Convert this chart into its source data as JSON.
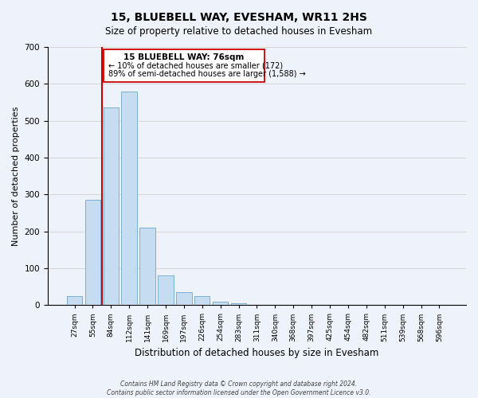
{
  "title": "15, BLUEBELL WAY, EVESHAM, WR11 2HS",
  "subtitle": "Size of property relative to detached houses in Evesham",
  "xlabel": "Distribution of detached houses by size in Evesham",
  "ylabel": "Number of detached properties",
  "bar_values": [
    25,
    285,
    535,
    580,
    210,
    80,
    35,
    25,
    10,
    5,
    0,
    0,
    0,
    0,
    0,
    0,
    0,
    0,
    0,
    0,
    0
  ],
  "categories": [
    "27sqm",
    "55sqm",
    "84sqm",
    "112sqm",
    "141sqm",
    "169sqm",
    "197sqm",
    "226sqm",
    "254sqm",
    "283sqm",
    "311sqm",
    "340sqm",
    "368sqm",
    "397sqm",
    "425sqm",
    "454sqm",
    "482sqm",
    "511sqm",
    "539sqm",
    "568sqm",
    "596sqm"
  ],
  "bar_color": "#c6dcf0",
  "bar_edge_color": "#7ab0d4",
  "vline_color": "#cc0000",
  "vline_x": 1.5,
  "ylim": [
    0,
    700
  ],
  "yticks": [
    0,
    100,
    200,
    300,
    400,
    500,
    600,
    700
  ],
  "annotation_title": "15 BLUEBELL WAY: 76sqm",
  "annotation_line1": "← 10% of detached houses are smaller (172)",
  "annotation_line2": "89% of semi-detached houses are larger (1,588) →",
  "footer1": "Contains HM Land Registry data © Crown copyright and database right 2024.",
  "footer2": "Contains public sector information licensed under the Open Government Licence v3.0.",
  "background_color": "#eef2fa",
  "plot_bg_color": "#eef2fa"
}
